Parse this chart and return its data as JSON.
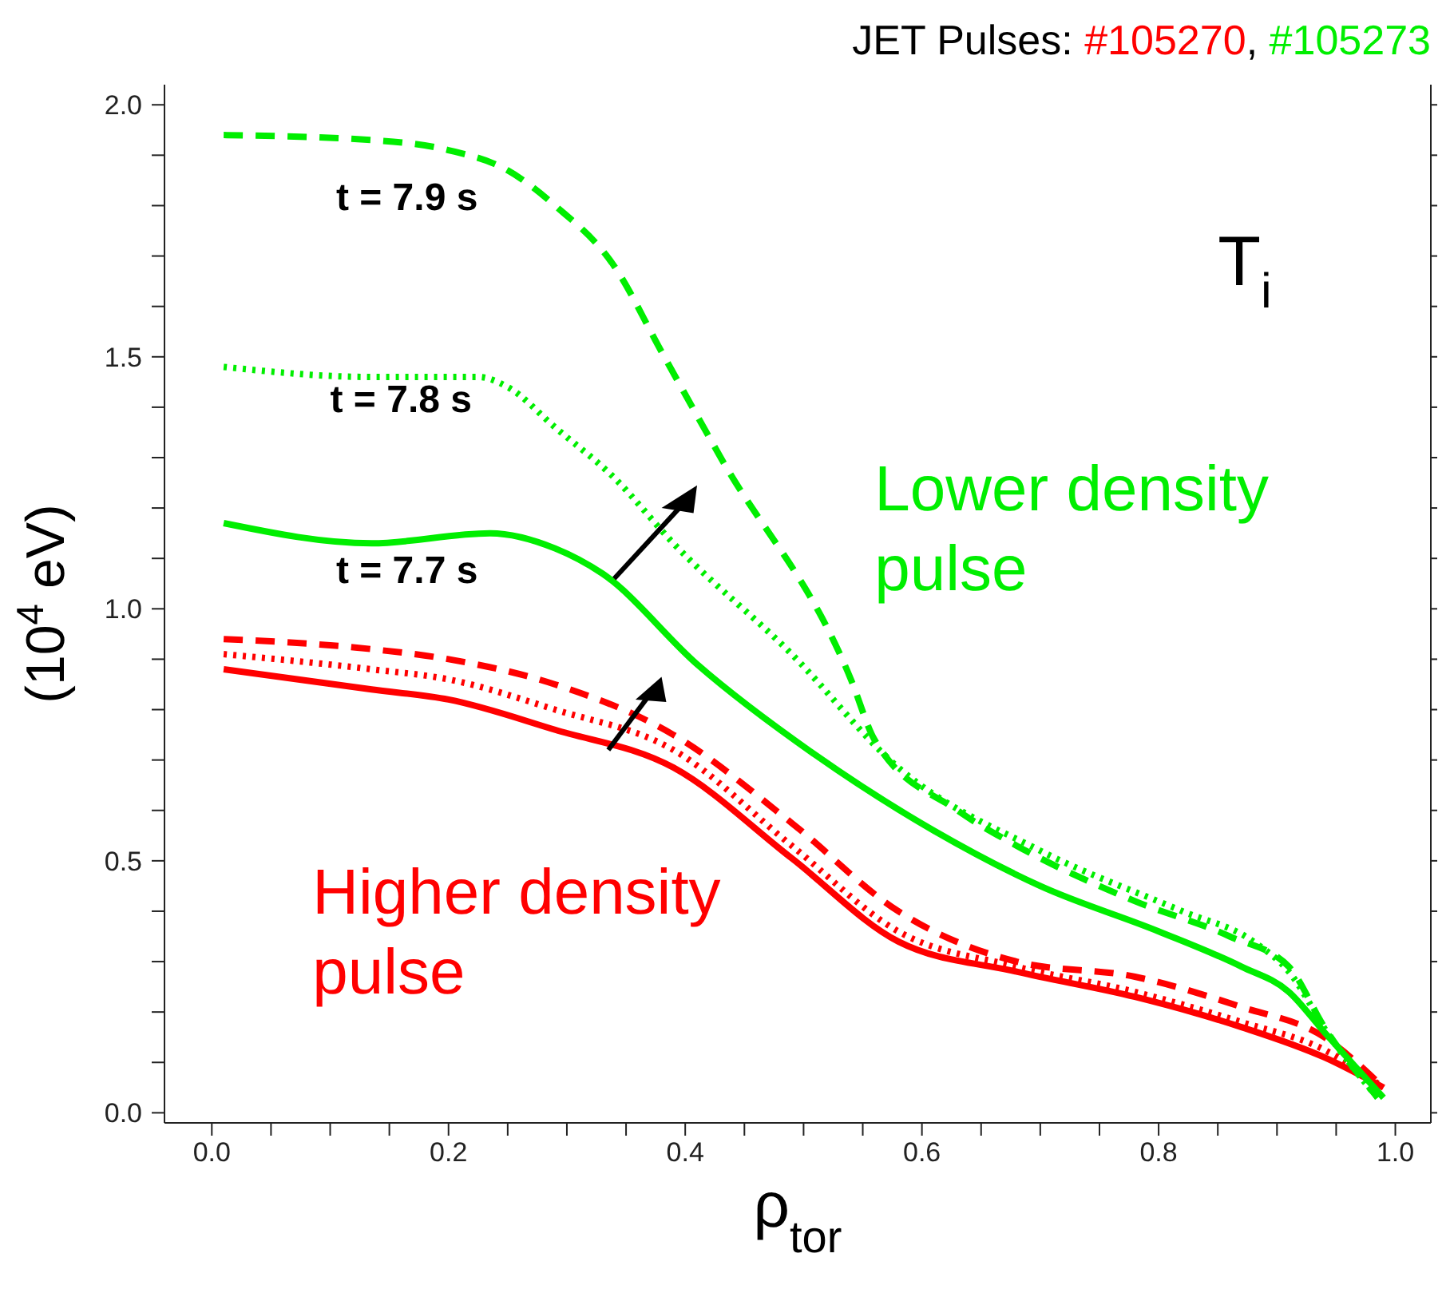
{
  "chart_data": {
    "type": "line",
    "title": "JET Pulses: #105270, #105273",
    "xlabel": "ρ$_{tor}$",
    "ylabel": "(10$^{4}$ eV)",
    "xlim": [
      -0.04,
      1.03
    ],
    "ylim": [
      -0.02,
      2.04
    ],
    "xticks": [
      {
        "value": 0,
        "label": "0.0"
      },
      {
        "value": 0.05,
        "label": null
      },
      {
        "value": 0.1,
        "label": null
      },
      {
        "value": 0.15,
        "label": null
      },
      {
        "value": 0.2,
        "label": "0.2"
      },
      {
        "value": 0.25,
        "label": null
      },
      {
        "value": 0.3,
        "label": null
      },
      {
        "value": 0.35,
        "label": null
      },
      {
        "value": 0.4,
        "label": "0.4"
      },
      {
        "value": 0.45,
        "label": null
      },
      {
        "value": 0.5,
        "label": null
      },
      {
        "value": 0.55,
        "label": null
      },
      {
        "value": 0.6,
        "label": "0.6"
      },
      {
        "value": 0.65,
        "label": null
      },
      {
        "value": 0.7,
        "label": null
      },
      {
        "value": 0.75,
        "label": null
      },
      {
        "value": 0.8,
        "label": "0.8"
      },
      {
        "value": 0.85,
        "label": null
      },
      {
        "value": 0.9,
        "label": null
      },
      {
        "value": 0.95,
        "label": null
      },
      {
        "value": 1,
        "label": "1.0"
      }
    ],
    "yticks": [
      {
        "value": 0,
        "label": "0.0"
      },
      {
        "value": 0.1,
        "label": null
      },
      {
        "value": 0.2,
        "label": null
      },
      {
        "value": 0.3,
        "label": null
      },
      {
        "value": 0.4,
        "label": null
      },
      {
        "value": 0.5,
        "label": "0.5"
      },
      {
        "value": 0.6,
        "label": null
      },
      {
        "value": 0.7,
        "label": null
      },
      {
        "value": 0.8,
        "label": null
      },
      {
        "value": 0.9,
        "label": null
      },
      {
        "value": 1,
        "label": "1.0"
      },
      {
        "value": 1.1,
        "label": null
      },
      {
        "value": 1.2,
        "label": null
      },
      {
        "value": 1.3,
        "label": null
      },
      {
        "value": 1.4,
        "label": null
      },
      {
        "value": 1.5,
        "label": "1.5"
      },
      {
        "value": 1.6,
        "label": null
      },
      {
        "value": 1.7,
        "label": null
      },
      {
        "value": 1.8,
        "label": null
      },
      {
        "value": 1.9,
        "label": null
      },
      {
        "value": 2,
        "label": "2.0"
      }
    ],
    "marker": "none",
    "series": [
      {
        "color": "#ff0000",
        "line_style": "solid",
        "x": [
          0.01,
          0.135,
          0.2,
          0.29,
          0.39,
          0.49,
          0.58,
          0.68,
          0.78,
          0.87,
          0.94,
          0.99
        ],
        "values": [
          0.88,
          0.84,
          0.82,
          0.76,
          0.685,
          0.505,
          0.34,
          0.28,
          0.23,
          0.17,
          0.11,
          0.05
        ]
      },
      {
        "color": "#ff0000",
        "line_style": "dotted",
        "x": [
          0.01,
          0.135,
          0.2,
          0.29,
          0.39,
          0.49,
          0.58,
          0.68,
          0.78,
          0.87,
          0.94,
          0.99
        ],
        "values": [
          0.91,
          0.88,
          0.86,
          0.8,
          0.72,
          0.53,
          0.36,
          0.29,
          0.24,
          0.18,
          0.125,
          0.05
        ]
      },
      {
        "color": "#ff0000",
        "line_style": "dashed",
        "x": [
          0.01,
          0.135,
          0.2,
          0.29,
          0.39,
          0.49,
          0.58,
          0.68,
          0.78,
          0.87,
          0.94,
          0.99
        ],
        "values": [
          0.94,
          0.92,
          0.9,
          0.85,
          0.75,
          0.575,
          0.4,
          0.3,
          0.27,
          0.21,
          0.15,
          0.05
        ]
      },
      {
        "color": "#00ee00",
        "line_style": "solid",
        "x": [
          0.01,
          0.135,
          0.235,
          0.29,
          0.33,
          0.41,
          0.51,
          0.61,
          0.7,
          0.8,
          0.87,
          0.91,
          0.94,
          0.99
        ],
        "values": [
          1.17,
          1.13,
          1.15,
          1.12,
          1.07,
          0.89,
          0.71,
          0.56,
          0.45,
          0.36,
          0.29,
          0.24,
          0.16,
          0.03
        ]
      },
      {
        "color": "#00ee00",
        "line_style": "dotted",
        "x": [
          0.01,
          0.135,
          0.225,
          0.25,
          0.29,
          0.34,
          0.39,
          0.49,
          0.58,
          0.7,
          0.82,
          0.88,
          0.91,
          0.945,
          0.985
        ],
        "values": [
          1.48,
          1.46,
          1.46,
          1.44,
          1.36,
          1.26,
          1.13,
          0.91,
          0.685,
          0.52,
          0.4,
          0.34,
          0.28,
          0.15,
          0.03
        ]
      },
      {
        "color": "#00ee00",
        "line_style": "dashed",
        "x": [
          0.01,
          0.135,
          0.2,
          0.25,
          0.29,
          0.34,
          0.38,
          0.43,
          0.54,
          0.56,
          0.63,
          0.68,
          0.78,
          0.86,
          0.91,
          0.94,
          0.985
        ],
        "values": [
          1.94,
          1.93,
          1.91,
          1.87,
          1.8,
          1.68,
          1.51,
          1.3,
          0.86,
          0.74,
          0.6,
          0.53,
          0.42,
          0.35,
          0.29,
          0.17,
          0.03
        ]
      }
    ],
    "annotations": [
      "t = 7.9 s",
      "t = 7.8 s",
      "t = 7.7 s",
      "T$_{i}$",
      "Lower density pulse",
      "Higher density pulse"
    ]
  }
}
